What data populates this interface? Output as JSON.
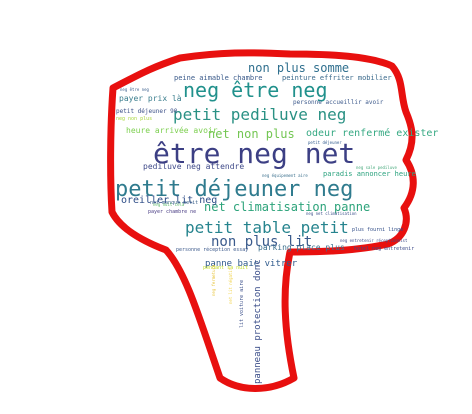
{
  "colors": {
    "outline": "#e8100f",
    "background": "#ffffff"
  },
  "words": [
    {
      "text": "être neg net",
      "color": "#3c3f84"
    },
    {
      "text": "petit déjeuner neg",
      "color": "#2f7b8e"
    },
    {
      "text": "neg être neg",
      "color": "#21918c"
    },
    {
      "text": "petit pediluve neg",
      "color": "#2a9184"
    },
    {
      "text": "petit table petit",
      "color": "#26848e"
    },
    {
      "text": "non plus somme",
      "color": "#2f6f8e"
    },
    {
      "text": "non plus lit",
      "color": "#3a5a8c"
    },
    {
      "text": "net climatisation panne",
      "color": "#2ca37a"
    },
    {
      "text": "net non plus",
      "color": "#73c652"
    },
    {
      "text": "odeur renfermé exister",
      "color": "#36a983"
    },
    {
      "text": "oreiller lit neg",
      "color": "#2c4b86"
    },
    {
      "text": "parking place plus",
      "color": "#3b6f8d"
    },
    {
      "text": "panne baie vitrer",
      "color": "#2f5a8c"
    },
    {
      "text": "panneau protection donc",
      "color": "#3a4d89"
    },
    {
      "text": "peine aimable chambre",
      "color": "#3a5a8a"
    },
    {
      "text": "peinture effriter mobilier",
      "color": "#3b6a8c"
    },
    {
      "text": "payer prix là",
      "color": "#3a7d8d"
    },
    {
      "text": "pediluve neg attendre",
      "color": "#3f4a89"
    },
    {
      "text": "heure arrivée avoir",
      "color": "#7ccf4f"
    },
    {
      "text": "paradis annoncer heure",
      "color": "#2aa27e"
    },
    {
      "text": "personne accueillir avoir",
      "color": "#3d5a8c"
    },
    {
      "text": "petit déjeuner 90",
      "color": "#3b4f87"
    },
    {
      "text": "neg non plus",
      "color": "#a8d63a"
    },
    {
      "text": "net manque petit",
      "color": "#3a6089"
    },
    {
      "text": "payer chambre ne",
      "color": "#4a3d84"
    },
    {
      "text": "pendant sa nuit",
      "color": "#c3dd2a"
    },
    {
      "text": "plus fourni linge",
      "color": "#2e4a86"
    },
    {
      "text": "personne réception essay",
      "color": "#3d5a8c"
    },
    {
      "text": "lit voiture aire",
      "color": "#3b4f8a"
    },
    {
      "text": "hotel neg entretenir",
      "color": "#3d4a89"
    },
    {
      "text": "neg entretenir réceptionnist",
      "color": "#3d4a89"
    },
    {
      "text": "neg net climatisation",
      "color": "#3b4f8a"
    },
    {
      "text": "petit déjeuner",
      "color": "#2f5a8c"
    },
    {
      "text": "neg sale pediluve",
      "color": "#44a87a"
    },
    {
      "text": "neg être neg",
      "color": "#3c5f8c"
    },
    {
      "text": "neg équipement aire",
      "color": "#3a6f8c"
    },
    {
      "text": "neg nuit cela",
      "color": "#5ab867"
    },
    {
      "text": "net lit négatif",
      "color": "#f0d24a"
    },
    {
      "text": "neg fermeture",
      "color": "#e8c43a"
    }
  ]
}
